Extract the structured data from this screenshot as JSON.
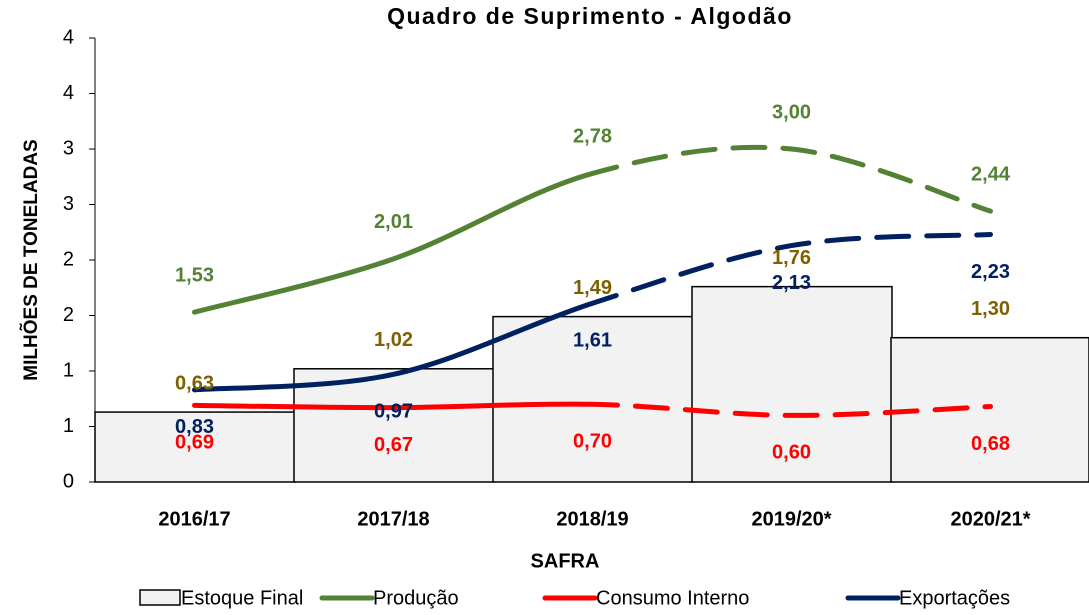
{
  "chart_data": {
    "type": "bar_line",
    "title": "Quadro de Suprimento - Algodão",
    "xlabel": "SAFRA",
    "ylabel": "MILHÕES DE TONELADAS",
    "categories": [
      "2016/17",
      "2017/18",
      "2018/19",
      "2019/20*",
      "2020/21*"
    ],
    "ylim": [
      0,
      4
    ],
    "yticks": [
      0,
      {
        "value": 0.5,
        "label": "1"
      },
      1,
      {
        "value": 1.5,
        "label": "2"
      },
      2,
      {
        "value": 2.5,
        "label": "3"
      },
      3,
      {
        "value": 3.5,
        "label": "4"
      },
      4
    ],
    "series": [
      {
        "name": "Estoque Final",
        "kind": "bar",
        "color": "#f2f2f2",
        "label_color": "#7f6000",
        "values": [
          0.63,
          1.02,
          1.49,
          1.76,
          1.3
        ],
        "value_labels": [
          "0,63",
          "1,02",
          "1,49",
          "1,76",
          "1,30"
        ]
      },
      {
        "name": "Produção",
        "kind": "line",
        "color": "#548235",
        "values": [
          1.53,
          2.01,
          2.78,
          3.0,
          2.44
        ],
        "value_labels": [
          "1,53",
          "2,01",
          "2,78",
          "3,00",
          "2,44"
        ]
      },
      {
        "name": "Consumo Interno",
        "kind": "line",
        "color": "#ff0000",
        "values": [
          0.69,
          0.67,
          0.7,
          0.6,
          0.68
        ],
        "value_labels": [
          "0,69",
          "0,67",
          "0,70",
          "0,60",
          "0,68"
        ]
      },
      {
        "name": "Exportações",
        "kind": "line",
        "color": "#002060",
        "values": [
          0.83,
          0.97,
          1.61,
          2.13,
          2.23
        ],
        "value_labels": [
          "0,83",
          "0,97",
          "1,61",
          "2,13",
          "2,23"
        ]
      }
    ]
  }
}
